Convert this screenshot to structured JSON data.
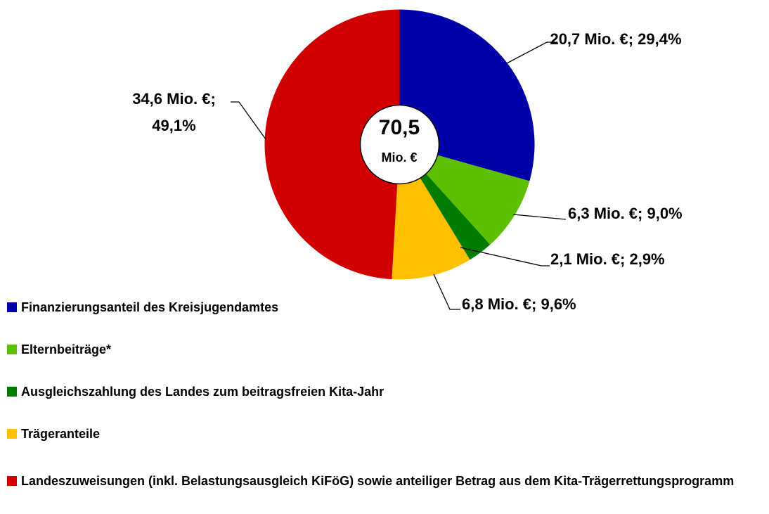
{
  "chart_data": {
    "type": "donut",
    "categories": [
      "Finanzierungsanteil des Kreisjugendamtes",
      "Elternbeiträge*",
      "Ausgleichszahlung des Landes zum beitragsfreien Kita-Jahr",
      "Trägeranteile",
      "Landeszuweisungen (inkl. Belastungsausgleich KiFöG) sowie anteiliger Betrag aus dem Kita-Trägerrettungsprogramm"
    ],
    "values": [
      20.7,
      6.3,
      2.1,
      6.8,
      34.6
    ],
    "value_labels": [
      "20,7 Mio. €; 29,4%",
      "6,3 Mio. €; 9,0%",
      "2,1 Mio. €; 2,9%",
      "6,8 Mio. €; 9,6%",
      "34,6 Mio. €; 49,1%"
    ],
    "colors": [
      "#0000a8",
      "#5cbf00",
      "#007d00",
      "#ffc000",
      "#d00000"
    ],
    "center_label": "70,5",
    "center_unit": "Mio. €"
  }
}
